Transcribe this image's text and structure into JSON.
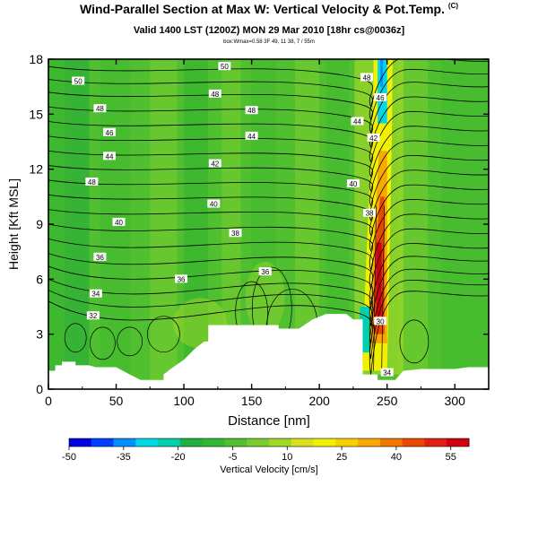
{
  "header": {
    "title": "Wind-Parallel Section at Max W: Vertical Velocity & Pot.Temp.",
    "copyright": "(C)",
    "valid": "Valid 1400 LST (1200Z) MON 29 Mar 2010 [18hr cs@0036z]",
    "box": "box:Wmax=0.58 3F 49, 11 38, 7 / 55m"
  },
  "chart_data": {
    "type": "heatmap",
    "xlabel": "Distance [nm]",
    "ylabel": "Height [Kft MSL]",
    "xlim": [
      0,
      325
    ],
    "ylim": [
      0,
      18
    ],
    "x_ticks": [
      "0",
      "50",
      "100",
      "150",
      "200",
      "250",
      "300"
    ],
    "x_tick_values": [
      0,
      50,
      100,
      150,
      200,
      250,
      300
    ],
    "y_ticks": [
      "0",
      "3",
      "6",
      "9",
      "12",
      "15",
      "18"
    ],
    "y_tick_values": [
      0,
      3,
      6,
      9,
      12,
      15,
      18
    ],
    "colorbar": {
      "label": "Vertical Velocity [cm/s]",
      "tick_labels": [
        "-50",
        "-35",
        "-20",
        "-5",
        "10",
        "25",
        "40",
        "55"
      ],
      "tick_values": [
        -50,
        -35,
        -20,
        -5,
        10,
        25,
        40,
        55
      ],
      "min": -50,
      "max": 60,
      "colors": [
        "#0000e0",
        "#0040ff",
        "#0090ff",
        "#00d8e8",
        "#00d0b0",
        "#20b040",
        "#30b830",
        "#50c030",
        "#78cc30",
        "#a0d828",
        "#d8e020",
        "#f0f000",
        "#f8d000",
        "#f8a800",
        "#f07800",
        "#e84800",
        "#e02010",
        "#d00010"
      ]
    },
    "terrain": [
      [
        0,
        1
      ],
      [
        5,
        1
      ],
      [
        5,
        1.3
      ],
      [
        10,
        1.3
      ],
      [
        10,
        1.5
      ],
      [
        20,
        1.5
      ],
      [
        20,
        1.3
      ],
      [
        30,
        1.3
      ],
      [
        35,
        1.2
      ],
      [
        50,
        1.2
      ],
      [
        55,
        1
      ],
      [
        60,
        0.8
      ],
      [
        68,
        0.5
      ],
      [
        85,
        0.5
      ],
      [
        85,
        0.8
      ],
      [
        92,
        1.2
      ],
      [
        100,
        1.6
      ],
      [
        108,
        2.2
      ],
      [
        115,
        2.6
      ],
      [
        118,
        2.6
      ],
      [
        118,
        3.5
      ],
      [
        170,
        3.5
      ],
      [
        170,
        3.3
      ],
      [
        185,
        3.3
      ],
      [
        195,
        3.8
      ],
      [
        205,
        4.1
      ],
      [
        220,
        4.1
      ],
      [
        225,
        3.8
      ],
      [
        232,
        3.8
      ],
      [
        232,
        0.8
      ],
      [
        243,
        0.8
      ],
      [
        243,
        0.5
      ],
      [
        256,
        0.5
      ],
      [
        262,
        1
      ],
      [
        275,
        1.1
      ],
      [
        300,
        1.1
      ],
      [
        310,
        1.2
      ],
      [
        325,
        1.2
      ]
    ],
    "contour_labels": [
      {
        "text": "50",
        "x": 22,
        "y": 16.8
      },
      {
        "text": "50",
        "x": 130,
        "y": 17.6
      },
      {
        "text": "48",
        "x": 38,
        "y": 15.3
      },
      {
        "text": "48",
        "x": 123,
        "y": 16.1
      },
      {
        "text": "48",
        "x": 150,
        "y": 15.2
      },
      {
        "text": "46",
        "x": 45,
        "y": 14.0
      },
      {
        "text": "44",
        "x": 150,
        "y": 13.8
      },
      {
        "text": "44",
        "x": 45,
        "y": 12.7
      },
      {
        "text": "42",
        "x": 123,
        "y": 12.3
      },
      {
        "text": "42",
        "x": 240,
        "y": 13.7
      },
      {
        "text": "44",
        "x": 228,
        "y": 14.6
      },
      {
        "text": "46",
        "x": 245,
        "y": 15.9
      },
      {
        "text": "48",
        "x": 235,
        "y": 17.0
      },
      {
        "text": "48",
        "x": 32,
        "y": 11.3
      },
      {
        "text": "40",
        "x": 122,
        "y": 10.1
      },
      {
        "text": "40",
        "x": 225,
        "y": 11.2
      },
      {
        "text": "40",
        "x": 52,
        "y": 9.1
      },
      {
        "text": "38",
        "x": 237,
        "y": 9.6
      },
      {
        "text": "38",
        "x": 138,
        "y": 8.5
      },
      {
        "text": "36",
        "x": 38,
        "y": 7.2
      },
      {
        "text": "36",
        "x": 98,
        "y": 6.0
      },
      {
        "text": "36",
        "x": 160,
        "y": 6.4
      },
      {
        "text": "34",
        "x": 35,
        "y": 5.2
      },
      {
        "text": "32",
        "x": 33,
        "y": 4.0
      },
      {
        "text": "30",
        "x": 245,
        "y": 3.7
      },
      {
        "text": "34",
        "x": 250,
        "y": 0.9
      }
    ]
  }
}
